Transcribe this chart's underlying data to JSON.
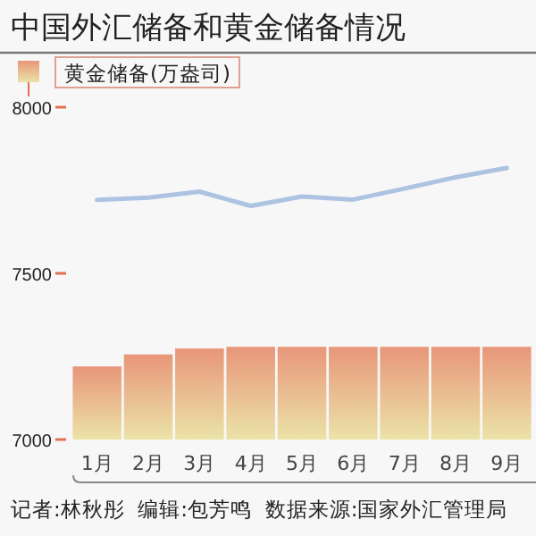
{
  "chart_data": {
    "type": "bar",
    "title": "中国外汇储备和黄金储备情况",
    "categories": [
      "1月",
      "2月",
      "3月",
      "4月",
      "5月",
      "6月",
      "7月",
      "8月",
      "9月"
    ],
    "series": [
      {
        "name": "黄金储备(万盎司)",
        "color": "#e8967a",
        "values": [
          7220,
          7256,
          7274,
          7279,
          7279,
          7279,
          7279,
          7279,
          7279
        ]
      },
      {
        "type": "line",
        "color": "#adc3e2",
        "values": [
          7721,
          7728,
          7746,
          7703,
          7731,
          7722,
          7755,
          7789,
          7817
        ]
      }
    ],
    "ylim": [
      7000,
      8000
    ],
    "yticks": [
      7000,
      7500,
      8000
    ],
    "grid": false,
    "legend": "top left",
    "annotations": [
      "记者:林秋彤  编辑:包芳鸣  数据来源:国家外汇管理局"
    ]
  }
}
